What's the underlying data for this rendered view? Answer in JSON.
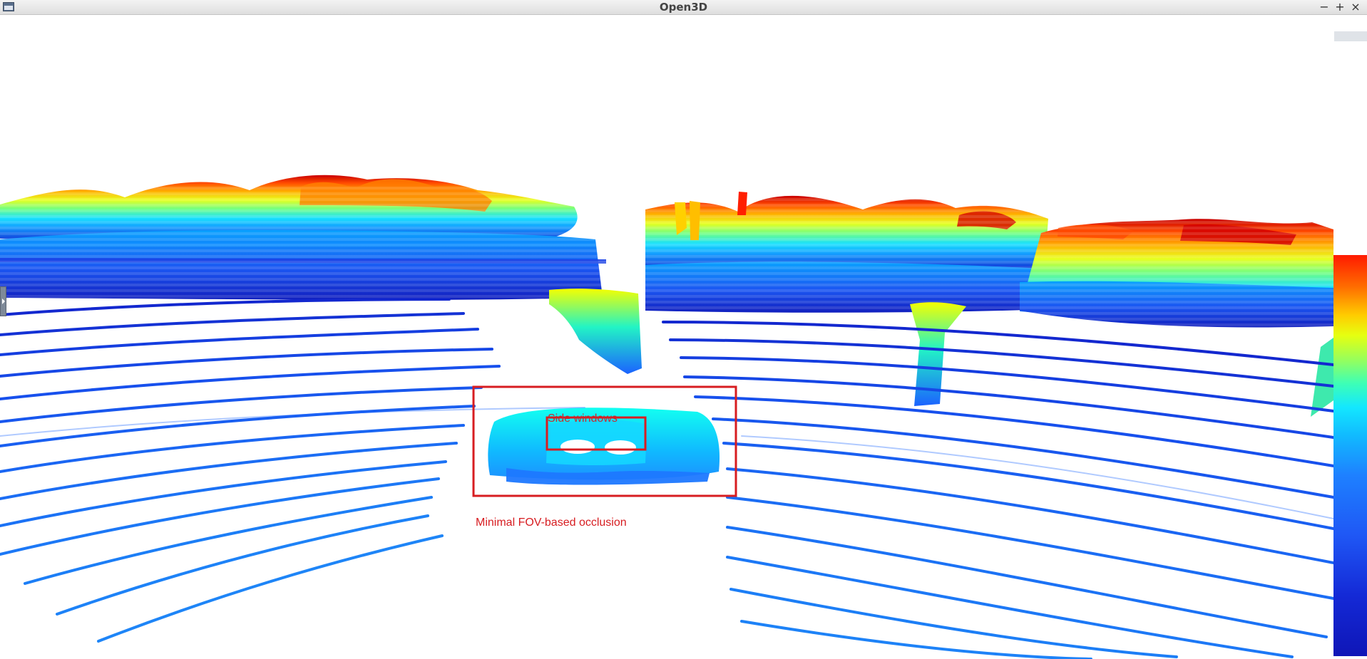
{
  "window": {
    "title": "Open3D",
    "controls": {
      "minimize": "−",
      "maximize": "+",
      "close": "×"
    }
  },
  "annotations": {
    "side_windows": "Side windows",
    "occlusion": "Minimal FOV-based occlusion"
  },
  "colors": {
    "annotation_red": "#d71d21",
    "colormap": [
      "#0f16b7",
      "#1f57f5",
      "#11baff",
      "#3dffb6",
      "#98ff5a",
      "#ffcc00",
      "#ff6e00",
      "#c90000"
    ]
  },
  "icons": {
    "app": "open3d-window-icon",
    "left_handle": "panel-toggle-icon",
    "corner_badge": "axis-badge-icon"
  }
}
